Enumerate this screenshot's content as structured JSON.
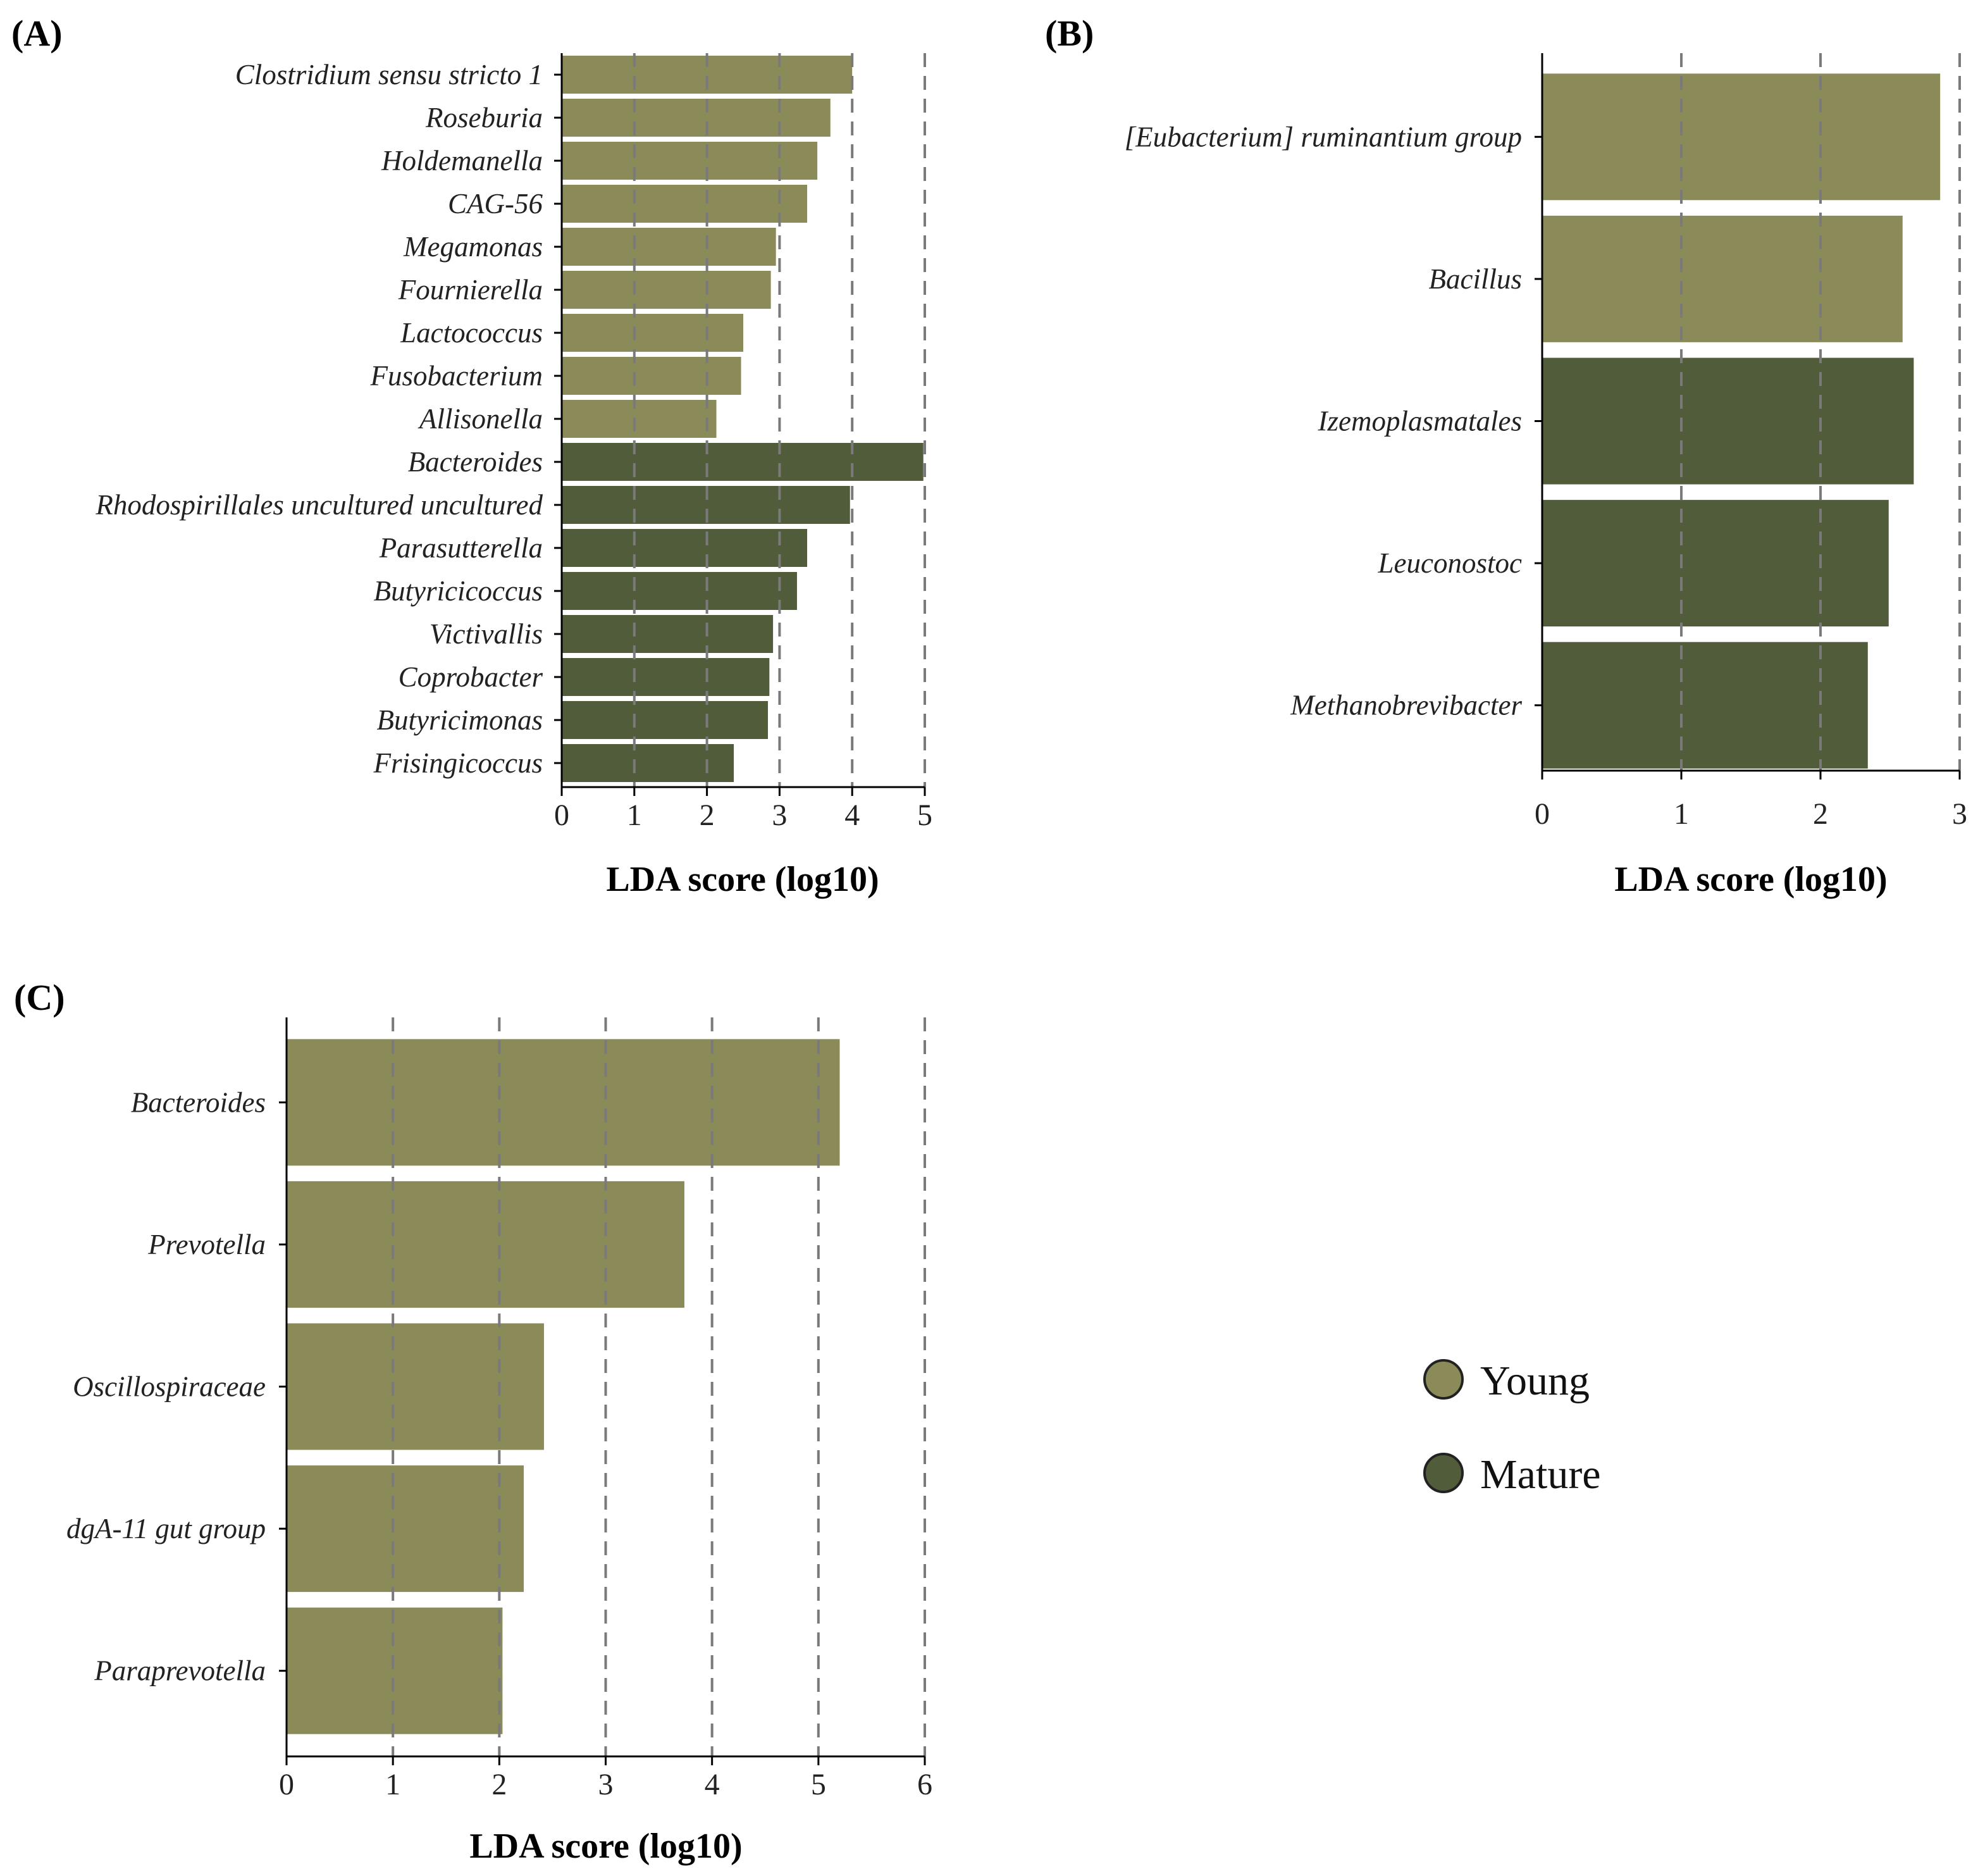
{
  "colors": {
    "young": "#8b8b5a",
    "mature": "#515c3b"
  },
  "chart_data": [
    {
      "panel": "(A)",
      "type": "bar",
      "orientation": "horizontal",
      "xlabel": "LDA score (log10)",
      "xlim": [
        0,
        5
      ],
      "xticks": [
        "0",
        "1",
        "2",
        "3",
        "4",
        "5"
      ],
      "categories": [
        "Clostridium sensu stricto 1",
        "Roseburia",
        "Holdemanella",
        "CAG-56",
        "Megamonas",
        "Fournierella",
        "Lactococcus",
        "Fusobacterium",
        "Allisonella",
        "Bacteroides",
        "Rhodospirillales uncultured uncultured",
        "Parasutterella",
        "Butyricicoccus",
        "Victivallis",
        "Coprobacter",
        "Butyricimonas",
        "Frisingicoccus"
      ],
      "values": [
        4.0,
        3.7,
        3.52,
        3.38,
        2.95,
        2.88,
        2.5,
        2.47,
        2.13,
        4.98,
        3.97,
        3.38,
        3.24,
        2.91,
        2.86,
        2.84,
        2.37
      ],
      "groups": [
        "Young",
        "Young",
        "Young",
        "Young",
        "Young",
        "Young",
        "Young",
        "Young",
        "Young",
        "Mature",
        "Mature",
        "Mature",
        "Mature",
        "Mature",
        "Mature",
        "Mature",
        "Mature"
      ]
    },
    {
      "panel": "(B)",
      "type": "bar",
      "orientation": "horizontal",
      "xlabel": "LDA score (log10)",
      "xlim": [
        0,
        3
      ],
      "xticks": [
        "0",
        "1",
        "2",
        "3"
      ],
      "categories": [
        "[Eubacterium] ruminantium group",
        "Bacillus",
        "Izemoplasmatales",
        "Leuconostoc",
        "Methanobrevibacter"
      ],
      "values": [
        2.86,
        2.59,
        2.67,
        2.49,
        2.34
      ],
      "groups": [
        "Young",
        "Young",
        "Mature",
        "Mature",
        "Mature"
      ]
    },
    {
      "panel": "(C)",
      "type": "bar",
      "orientation": "horizontal",
      "xlabel": "LDA score (log10)",
      "xlim": [
        0,
        6
      ],
      "xticks": [
        "0",
        "1",
        "2",
        "3",
        "4",
        "5",
        "6"
      ],
      "categories": [
        "Bacteroides",
        "Prevotella",
        "Oscillospiraceae",
        "dgA-11 gut group",
        "Paraprevotella"
      ],
      "values": [
        5.2,
        3.74,
        2.42,
        2.23,
        2.03
      ],
      "groups": [
        "Young",
        "Young",
        "Young",
        "Young",
        "Young"
      ]
    }
  ],
  "legend": [
    {
      "label": "Young",
      "group": "Young"
    },
    {
      "label": "Mature",
      "group": "Mature"
    }
  ]
}
